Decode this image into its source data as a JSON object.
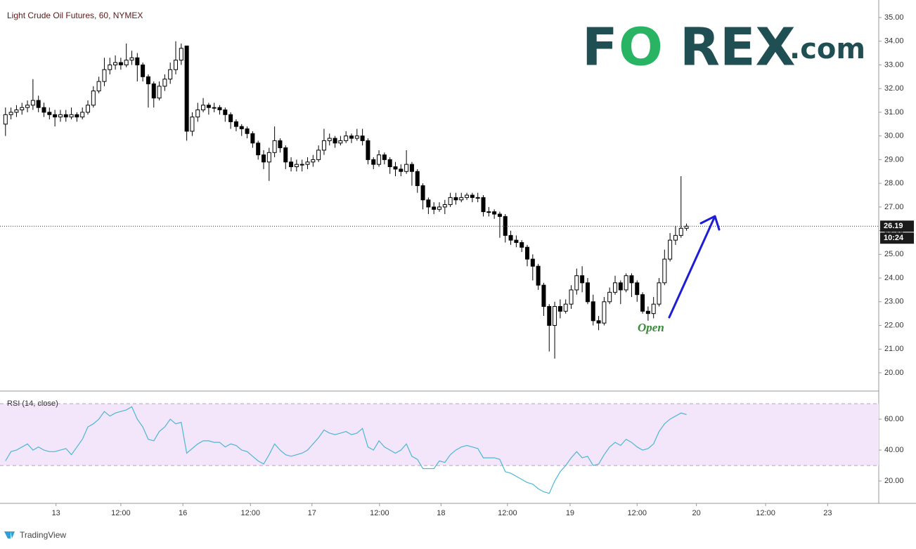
{
  "chart_data": [
    {
      "type": "candlestick",
      "title": "Light Crude Oil Futures, 60, NYMEX",
      "open": [
        30.5,
        30.9,
        31.0,
        31.1,
        31.2,
        31.3,
        31.5,
        31.2,
        31.0,
        30.9,
        30.8,
        30.9,
        30.8,
        30.9,
        30.8,
        31.0,
        31.3,
        31.9,
        32.3,
        32.8,
        33.0,
        33.1,
        33.0,
        33.2,
        33.3,
        33.0,
        32.5,
        32.2,
        31.6,
        32.1,
        32.4,
        32.8,
        33.2,
        33.8,
        30.2,
        30.8,
        31.1,
        31.3,
        31.2,
        31.2,
        31.1,
        30.9,
        30.6,
        30.4,
        30.3,
        30.1,
        29.7,
        29.2,
        28.9,
        29.3,
        29.8,
        29.5,
        28.9,
        28.7,
        28.8,
        28.8,
        28.9,
        29.0,
        29.4,
        29.8,
        29.9,
        29.7,
        29.8,
        30.0,
        29.9,
        30.0,
        29.8,
        29.0,
        28.8,
        29.2,
        29.0,
        28.7,
        28.6,
        28.5,
        28.8,
        28.5,
        27.9,
        27.3,
        27.0,
        26.9,
        27.0,
        27.1,
        27.4,
        27.3,
        27.4,
        27.5,
        27.4,
        27.4,
        26.8,
        26.8,
        26.7,
        26.6,
        25.8,
        25.6,
        25.5,
        25.3,
        24.8,
        24.5,
        23.7,
        22.8,
        22.0,
        22.8,
        22.6,
        22.9,
        23.5,
        24.1,
        23.8,
        23.0,
        22.2,
        22.1,
        23.0,
        23.4,
        23.8,
        23.5,
        24.1,
        23.8,
        23.3,
        22.6,
        22.5,
        22.9,
        23.8,
        24.8,
        25.6,
        25.8,
        26.1
      ],
      "high": [
        31.2,
        31.2,
        31.3,
        31.4,
        31.5,
        32.4,
        31.7,
        31.4,
        31.2,
        31.1,
        31.1,
        31.1,
        31.2,
        31.0,
        31.2,
        31.5,
        32.1,
        32.5,
        33.3,
        33.3,
        33.4,
        33.3,
        33.9,
        33.6,
        33.5,
        33.1,
        32.6,
        32.3,
        32.3,
        32.6,
        33.1,
        34.0,
        33.9,
        33.8,
        31.0,
        31.4,
        31.6,
        31.4,
        31.4,
        31.3,
        31.2,
        31.0,
        30.7,
        30.5,
        30.4,
        30.2,
        29.8,
        29.4,
        29.5,
        30.4,
        29.9,
        29.6,
        29.1,
        29.0,
        29.0,
        29.1,
        29.2,
        29.6,
        30.3,
        30.1,
        30.0,
        30.0,
        30.2,
        30.1,
        30.3,
        30.3,
        29.9,
        29.1,
        29.4,
        29.3,
        29.1,
        28.9,
        28.8,
        29.4,
        28.9,
        28.6,
        28.0,
        27.4,
        27.2,
        27.2,
        27.3,
        27.6,
        27.6,
        27.6,
        27.6,
        27.6,
        27.6,
        27.5,
        27.0,
        26.9,
        26.8,
        26.7,
        26.0,
        25.8,
        25.6,
        25.4,
        25.0,
        24.6,
        23.8,
        22.9,
        23.0,
        23.1,
        23.1,
        23.7,
        24.4,
        24.5,
        24.0,
        23.3,
        22.4,
        23.2,
        23.6,
        24.1,
        23.9,
        24.2,
        24.2,
        23.9,
        23.4,
        22.8,
        23.2,
        24.0,
        25.2,
        25.9,
        26.2,
        28.3,
        26.3
      ],
      "low": [
        30.0,
        30.7,
        30.8,
        30.9,
        31.0,
        31.1,
        31.0,
        30.8,
        30.7,
        30.4,
        30.6,
        30.6,
        30.7,
        30.6,
        30.7,
        30.9,
        31.2,
        31.8,
        32.1,
        32.6,
        32.8,
        32.8,
        32.9,
        33.0,
        32.3,
        32.3,
        31.2,
        31.2,
        31.5,
        31.9,
        32.2,
        32.6,
        33.0,
        29.8,
        30.0,
        30.6,
        31.0,
        30.9,
        31.0,
        30.9,
        30.6,
        30.3,
        30.2,
        30.0,
        29.9,
        29.5,
        29.0,
        28.6,
        28.1,
        29.1,
        29.3,
        28.6,
        28.5,
        28.5,
        28.5,
        28.6,
        28.7,
        28.9,
        29.2,
        29.6,
        29.5,
        29.6,
        29.7,
        29.7,
        29.8,
        29.6,
        28.8,
        28.6,
        28.7,
        28.8,
        28.4,
        28.3,
        28.3,
        28.4,
        27.9,
        27.6,
        26.9,
        26.7,
        26.7,
        26.8,
        26.7,
        27.0,
        27.1,
        27.2,
        27.3,
        27.2,
        27.2,
        26.6,
        26.6,
        26.5,
        25.7,
        25.5,
        25.4,
        25.3,
        25.1,
        24.5,
        23.9,
        23.5,
        22.4,
        20.9,
        20.6,
        22.3,
        22.5,
        22.7,
        23.3,
        23.4,
        22.9,
        22.0,
        21.8,
        22.0,
        22.9,
        23.3,
        22.9,
        23.4,
        23.2,
        23.0,
        22.5,
        22.2,
        22.3,
        22.8,
        23.7,
        24.7,
        25.4,
        25.7,
        26.0
      ],
      "close": [
        30.9,
        31.0,
        31.1,
        31.2,
        31.3,
        31.5,
        31.2,
        31.0,
        30.9,
        30.8,
        30.9,
        30.8,
        30.9,
        30.8,
        31.0,
        31.3,
        31.9,
        32.3,
        32.8,
        33.0,
        33.1,
        33.0,
        33.2,
        33.3,
        33.0,
        32.5,
        32.2,
        31.6,
        32.1,
        32.4,
        32.8,
        33.2,
        33.7,
        30.2,
        30.8,
        31.1,
        31.3,
        31.2,
        31.2,
        31.1,
        30.9,
        30.6,
        30.4,
        30.3,
        30.1,
        29.7,
        29.2,
        28.9,
        29.3,
        29.8,
        29.5,
        28.9,
        28.7,
        28.8,
        28.8,
        28.9,
        29.0,
        29.4,
        29.8,
        29.9,
        29.7,
        29.8,
        30.0,
        29.9,
        30.0,
        29.8,
        29.0,
        28.8,
        29.2,
        29.0,
        28.7,
        28.6,
        28.5,
        28.8,
        28.5,
        27.9,
        27.3,
        27.0,
        26.9,
        27.0,
        27.1,
        27.4,
        27.3,
        27.4,
        27.5,
        27.4,
        27.4,
        26.8,
        26.8,
        26.7,
        26.6,
        25.8,
        25.6,
        25.5,
        25.3,
        24.8,
        24.5,
        23.7,
        22.8,
        22.0,
        22.8,
        22.6,
        22.9,
        23.5,
        24.1,
        23.8,
        23.0,
        22.2,
        22.1,
        23.0,
        23.4,
        23.8,
        23.5,
        24.1,
        23.8,
        23.3,
        22.6,
        22.5,
        22.9,
        23.8,
        24.8,
        25.6,
        25.8,
        26.1,
        26.19
      ],
      "up_color": "#ffffff",
      "down_color": "#000000",
      "wick_color": "#000000",
      "xlim": [
        -1,
        159
      ],
      "xticks": [
        {
          "value": 9.2,
          "label": "13"
        },
        {
          "value": 21,
          "label": "12:00"
        },
        {
          "value": 32.3,
          "label": "16"
        },
        {
          "value": 44.6,
          "label": "12:00"
        },
        {
          "value": 55.8,
          "label": "17"
        },
        {
          "value": 68.1,
          "label": "12:00"
        },
        {
          "value": 79.3,
          "label": "18"
        },
        {
          "value": 91.4,
          "label": "12:00"
        },
        {
          "value": 102.8,
          "label": "19"
        },
        {
          "value": 115,
          "label": "12:00"
        },
        {
          "value": 125.8,
          "label": "20"
        },
        {
          "value": 138.4,
          "label": "12:00"
        },
        {
          "value": 149.7,
          "label": "23"
        }
      ],
      "ylim": [
        19.23,
        35.74
      ],
      "yticks": [
        {
          "value": 20,
          "label": "20.00"
        },
        {
          "value": 21,
          "label": "21.00"
        },
        {
          "value": 22,
          "label": "22.00"
        },
        {
          "value": 23,
          "label": "23.00"
        },
        {
          "value": 24,
          "label": "24.00"
        },
        {
          "value": 25,
          "label": "25.00"
        },
        {
          "value": 26,
          "label": "26.00"
        },
        {
          "value": 27,
          "label": "27.00"
        },
        {
          "value": 28,
          "label": "28.00"
        },
        {
          "value": 29,
          "label": "29.00"
        },
        {
          "value": 30,
          "label": "30.00"
        },
        {
          "value": 31,
          "label": "31.00"
        },
        {
          "value": 32,
          "label": "32.00"
        },
        {
          "value": 33,
          "label": "33.00"
        },
        {
          "value": 34,
          "label": "34.00"
        },
        {
          "value": 35,
          "label": "35.00"
        }
      ],
      "last_price": 26.19,
      "countdown": "10:24",
      "annotation": "Open",
      "annotation_color": "#3a8a3a",
      "arrow_color": "#1d1dd8"
    },
    {
      "type": "line",
      "title": "RSI (14, close)",
      "color": "#4cb6d6",
      "values": [
        33,
        39,
        40,
        42,
        44,
        40,
        42,
        40,
        39,
        39,
        40,
        41,
        37,
        42,
        47,
        55,
        57,
        60,
        65,
        62,
        64,
        65,
        66,
        68,
        60,
        55,
        47,
        46,
        52,
        55,
        60,
        57,
        58,
        38,
        41,
        44,
        46,
        46,
        45,
        45,
        42,
        44,
        43,
        40,
        39,
        36,
        33,
        31,
        37,
        44,
        40,
        37,
        36,
        37,
        38,
        40,
        44,
        48,
        53,
        51,
        50,
        51,
        52,
        50,
        51,
        54,
        42,
        40,
        46,
        42,
        40,
        38,
        40,
        44,
        36,
        34,
        28,
        28,
        28,
        33,
        32,
        37,
        40,
        42,
        43,
        42,
        41,
        35,
        35,
        35,
        34,
        26,
        25,
        23,
        21,
        19,
        18,
        15,
        13,
        12,
        20,
        26,
        30,
        35,
        39,
        35,
        36,
        30,
        31,
        37,
        42,
        45,
        43,
        47,
        45,
        42,
        40,
        41,
        44,
        52,
        57,
        60,
        62,
        64,
        63
      ],
      "xlim": [
        -1,
        159
      ],
      "ylim": [
        5.5,
        78.2
      ],
      "yticks": [
        {
          "value": 20,
          "label": "20.00"
        },
        {
          "value": 40,
          "label": "40.00"
        },
        {
          "value": 60,
          "label": "60.00"
        }
      ],
      "band": [
        30,
        70
      ],
      "band_color": "#f4e6fa",
      "band_line_color": "#b9a0c0"
    }
  ],
  "logo": {
    "parts": [
      "F",
      "O",
      "REX",
      ".com"
    ]
  },
  "footer": "TradingView"
}
